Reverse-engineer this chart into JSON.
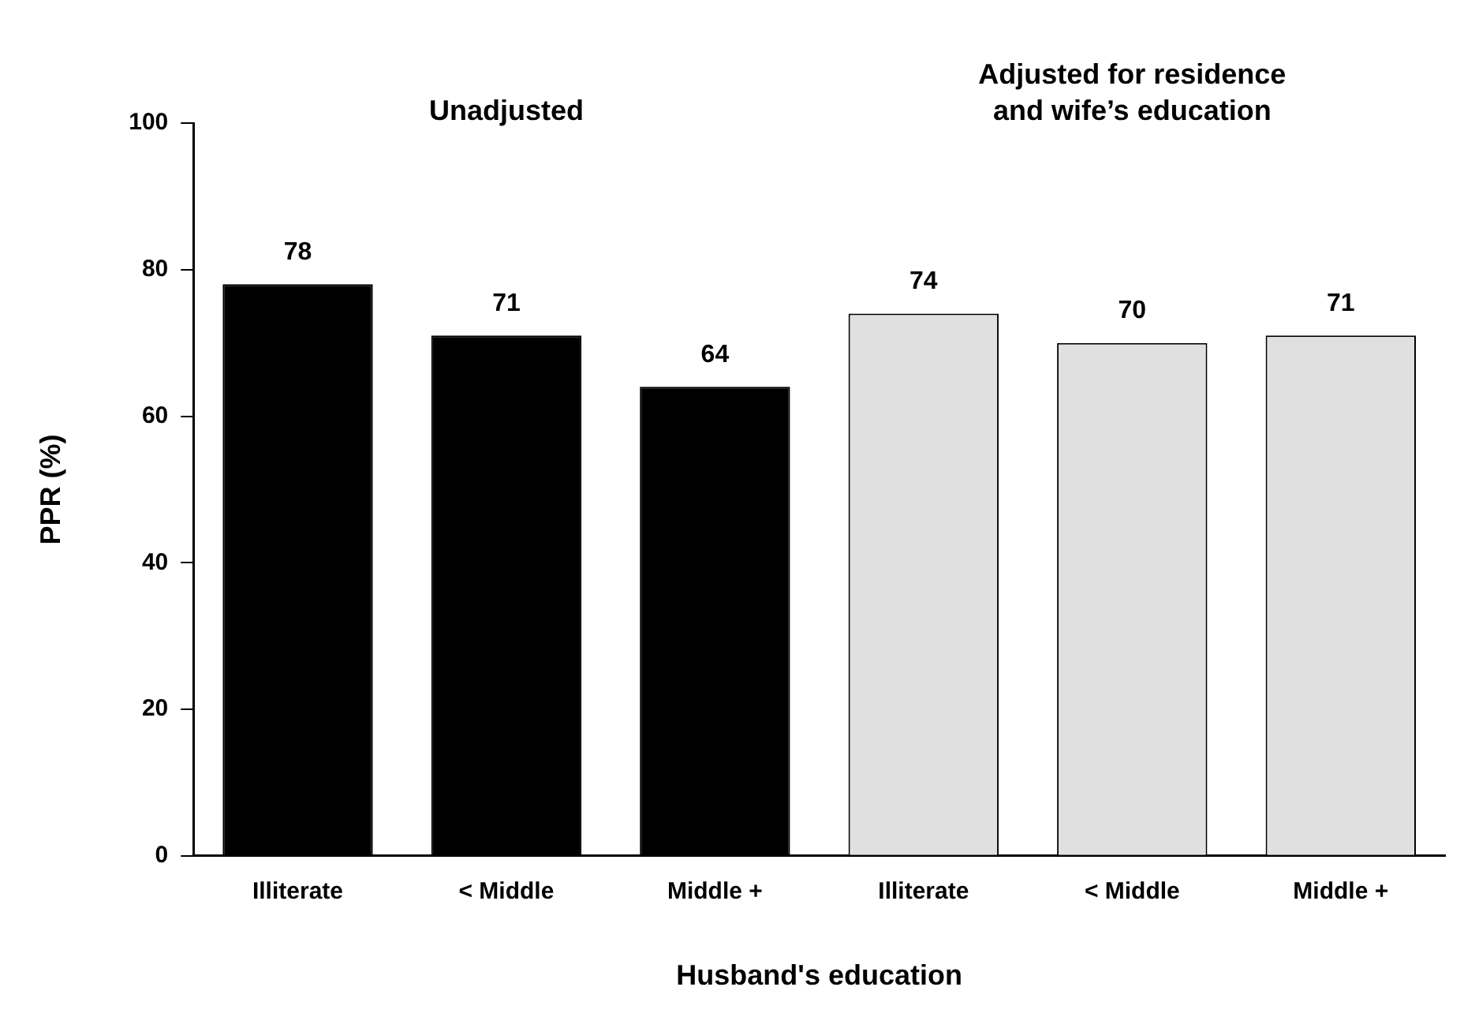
{
  "chart_data": {
    "type": "bar",
    "categories": [
      "Illiterate",
      "< Middle",
      "Middle +",
      "Illiterate",
      "< Middle",
      "Middle +"
    ],
    "values": [
      78,
      71,
      64,
      74,
      70,
      71
    ],
    "colors": [
      "#000000",
      "#000000",
      "#000000",
      "#e0e0e0",
      "#e0e0e0",
      "#e0e0e0"
    ],
    "data_labels": true,
    "ylim": [
      0,
      100
    ],
    "yticks": [
      0,
      20,
      40,
      60,
      80,
      100
    ],
    "ylabel": "PPR (%)",
    "xlabel": "Husband's education",
    "annotations": [
      "Unadjusted",
      "Adjusted for residence\nand wife’s education"
    ],
    "grid": false,
    "legend": false
  }
}
